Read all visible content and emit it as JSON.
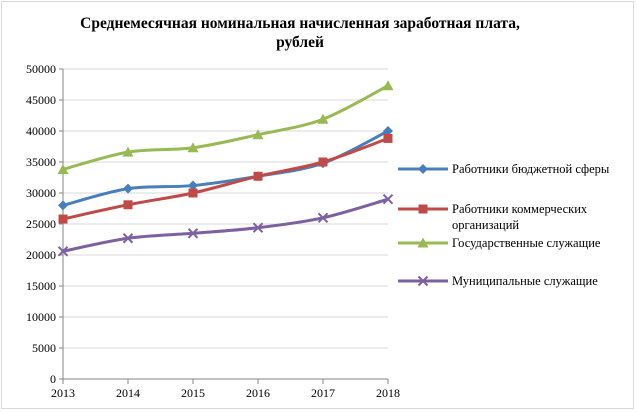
{
  "chart_data": {
    "type": "line",
    "title_lines": [
      "Среднемесячная номинальная начисленная заработная плата,",
      "рублей"
    ],
    "xlabel": "",
    "ylabel": "",
    "x": [
      "2013",
      "2014",
      "2015",
      "2016",
      "2017",
      "2018"
    ],
    "ylim": [
      0,
      50000
    ],
    "ytick_step": 5000,
    "yticks": [
      "0",
      "5000",
      "10000",
      "15000",
      "20000",
      "25000",
      "30000",
      "35000",
      "40000",
      "45000",
      "50000"
    ],
    "grid": "horizontal",
    "legend_position": "right",
    "series": [
      {
        "name": "Работники бюджетной сферы",
        "legend_lines": [
          "Работники бюджетной сферы"
        ],
        "color": "#4a7ebb",
        "marker": "diamond",
        "values": [
          28000,
          30700,
          31200,
          32700,
          34800,
          40000
        ]
      },
      {
        "name": "Работники коммерческих организаций",
        "legend_lines": [
          "Работники коммерческих",
          "организаций"
        ],
        "color": "#be4b48",
        "marker": "square",
        "values": [
          25800,
          28100,
          30000,
          32700,
          35000,
          38800
        ]
      },
      {
        "name": "Государственные служащие",
        "legend_lines": [
          "Государственные служащие"
        ],
        "color": "#98b954",
        "marker": "triangle",
        "values": [
          33800,
          36600,
          37300,
          39400,
          41900,
          47300
        ]
      },
      {
        "name": "Муниципальные служащие",
        "legend_lines": [
          "Муниципальные служащие"
        ],
        "color": "#7d60a0",
        "marker": "x",
        "values": [
          20600,
          22700,
          23500,
          24400,
          26000,
          29000
        ]
      }
    ]
  }
}
